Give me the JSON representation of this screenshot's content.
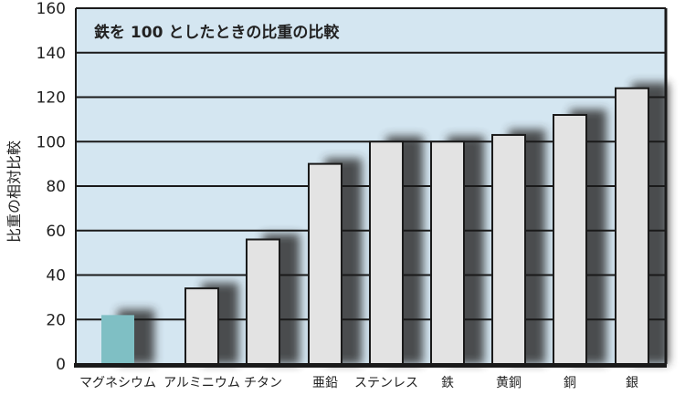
{
  "chart_data": {
    "type": "bar",
    "title": "鉄を 100 としたときの比重の比較",
    "xlabel": "",
    "ylabel": "比重の相対比較",
    "ylim": [
      0,
      160
    ],
    "yticks": [
      "0",
      "20",
      "40",
      "60",
      "80",
      "100",
      "120",
      "140",
      "160"
    ],
    "categories": [
      "マグネシウム",
      "アルミニウム",
      "チタン",
      "亜鉛",
      "ステンレス",
      "鉄",
      "黄銅",
      "銅",
      "銀"
    ],
    "values": [
      22,
      34,
      56,
      90,
      100,
      100,
      103,
      112,
      124
    ],
    "grid": true,
    "colors": {
      "background": "#d4e6f1",
      "bar": "#e3e3e3",
      "highlight_bar": "#7fbfc4",
      "grid": "#1a1a1a",
      "shadow": "#333333"
    }
  }
}
